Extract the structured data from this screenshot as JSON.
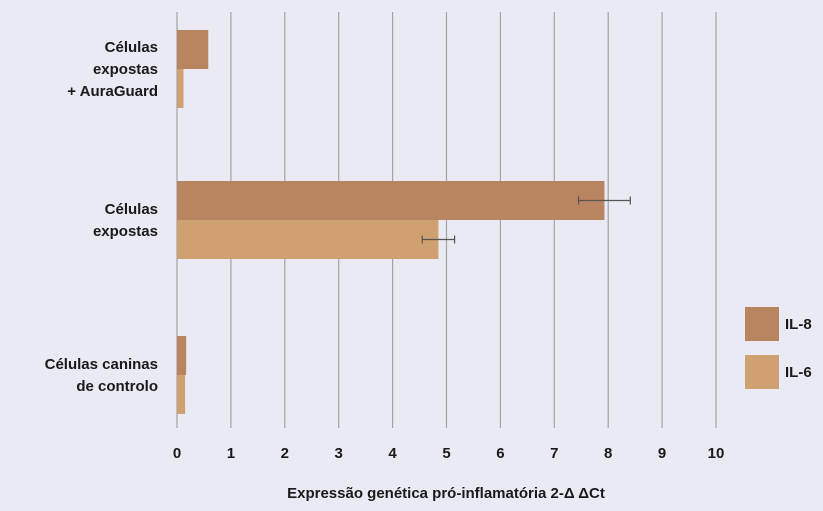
{
  "chart_data": {
    "type": "bar",
    "orientation": "horizontal",
    "categories": [
      [
        "Células",
        "expostas",
        "+ AuraGuard"
      ],
      [
        "Células",
        "expostas"
      ],
      [
        "Células caninas",
        "de controlo"
      ]
    ],
    "series": [
      {
        "name": "IL-8",
        "color": "#b98460",
        "values": [
          0.58,
          7.93,
          0.17
        ],
        "errors": [
          null,
          0.96,
          null
        ]
      },
      {
        "name": "IL-6",
        "color": "#cfa070",
        "values": [
          0.12,
          4.85,
          0.15
        ],
        "errors": [
          null,
          0.6,
          null
        ]
      }
    ],
    "xlabel": "Expressão genética pró-inflamatória 2-Δ ΔCt",
    "xlim": [
      0,
      10
    ],
    "xticks": [
      "0",
      "1",
      "2",
      "3",
      "4",
      "5",
      "6",
      "7",
      "8",
      "9",
      "10"
    ],
    "grid": true,
    "legend_position": "right"
  }
}
